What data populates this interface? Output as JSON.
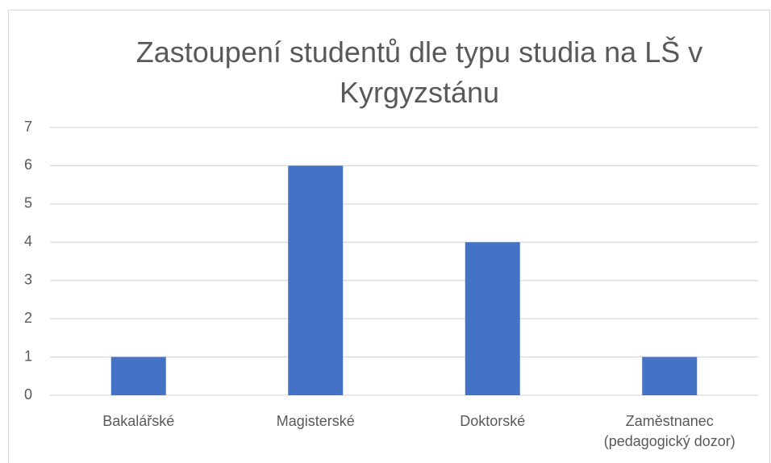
{
  "chart_data": {
    "type": "bar",
    "title": "Zastoupení studentů dle typu studia na LŠ v Kyrgyzstánu",
    "categories": [
      "Bakalářské",
      "Magisterské",
      "Doktorské",
      "Zaměstnanec (pedagogický dozor)"
    ],
    "values": [
      1,
      6,
      4,
      1
    ],
    "color": "#4472c4",
    "ylim": [
      0,
      7
    ],
    "yticks": [
      0,
      1,
      2,
      3,
      4,
      5,
      6,
      7
    ],
    "grid": true
  }
}
